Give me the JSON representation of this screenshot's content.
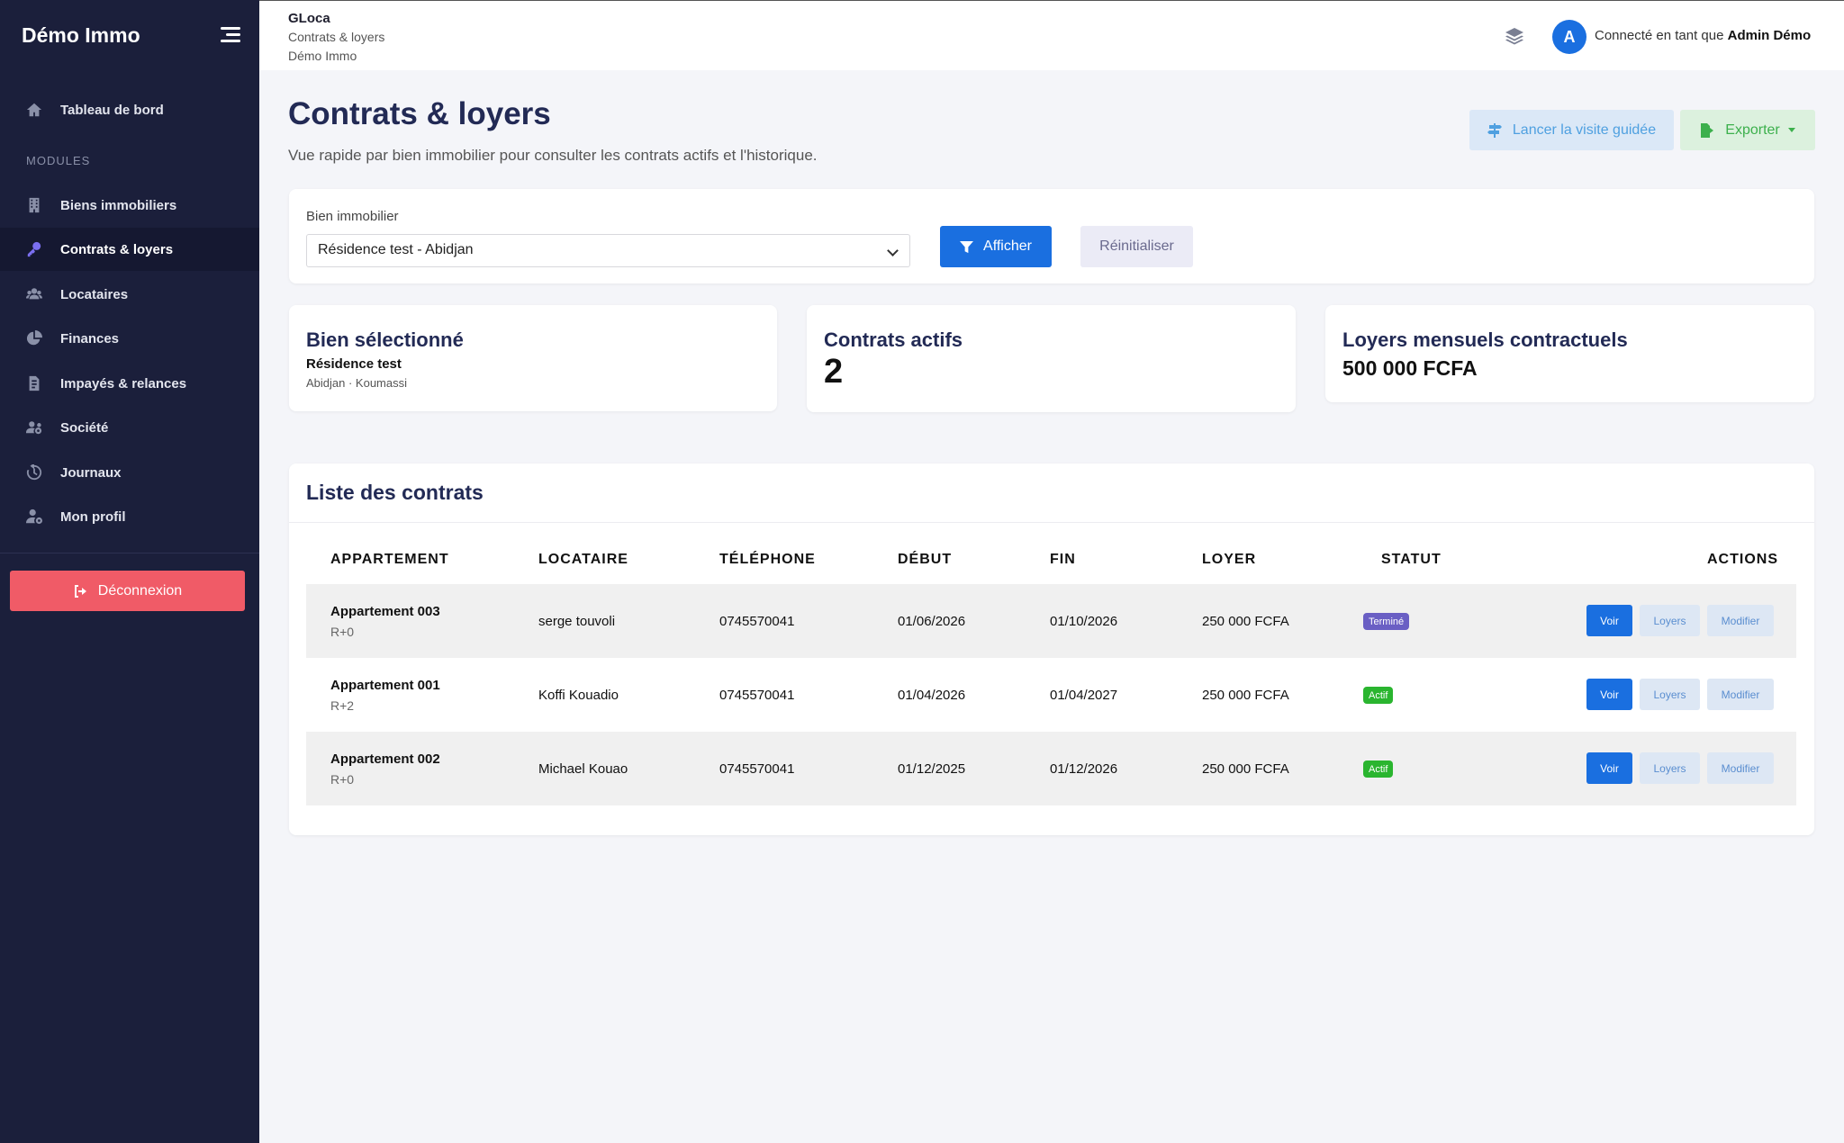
{
  "sidebar": {
    "brand": "Démo Immo",
    "dashboard": "Tableau de bord",
    "modules_title": "MODULES",
    "items": [
      {
        "label": "Biens immobiliers",
        "icon": "building-icon"
      },
      {
        "label": "Contrats & loyers",
        "icon": "key-icon",
        "active": true
      },
      {
        "label": "Locataires",
        "icon": "users-icon"
      },
      {
        "label": "Finances",
        "icon": "pie-chart-icon"
      },
      {
        "label": "Impayés & relances",
        "icon": "invoice-icon"
      },
      {
        "label": "Société",
        "icon": "users-cog-icon"
      },
      {
        "label": "Journaux",
        "icon": "history-icon"
      },
      {
        "label": "Mon profil",
        "icon": "user-cog-icon"
      }
    ],
    "logout": "Déconnexion"
  },
  "header": {
    "app_name": "GLoca",
    "breadcrumb_page": "Contrats & loyers",
    "breadcrumb_company": "Démo Immo",
    "avatar_letter": "A",
    "connected_prefix": "Connecté en tant que",
    "user_name": "Admin Démo"
  },
  "page": {
    "title": "Contrats & loyers",
    "subtitle": "Vue rapide par bien immobilier pour consulter les contrats actifs et l'historique.",
    "tour_button": "Lancer la visite guidée",
    "export_button": "Exporter"
  },
  "filter": {
    "label": "Bien immobilier",
    "selected": "Résidence test - Abidjan",
    "show_button": "Afficher",
    "reset_button": "Réinitialiser"
  },
  "stats": {
    "selected_title": "Bien sélectionné",
    "selected_name": "Résidence test",
    "selected_location": "Abidjan · Koumassi",
    "active_title": "Contrats actifs",
    "active_count": "2",
    "rent_title": "Loyers mensuels contractuels",
    "rent_value": "500 000 FCFA"
  },
  "list": {
    "title": "Liste des contrats",
    "headers": [
      "APPARTEMENT",
      "LOCATAIRE",
      "TÉLÉPHONE",
      "DÉBUT",
      "FIN",
      "LOYER",
      "STATUT",
      "ACTIONS"
    ],
    "rows": [
      {
        "apartment": "Appartement 003",
        "floor": "R+0",
        "tenant": "serge touvoli",
        "phone": "0745570041",
        "start": "01/06/2026",
        "end": "01/10/2026",
        "rent": "250 000 FCFA",
        "status": "Terminé",
        "status_color": "#6a5fc4"
      },
      {
        "apartment": "Appartement 001",
        "floor": "R+2",
        "tenant": "Koffi Kouadio",
        "phone": "0745570041",
        "start": "01/04/2026",
        "end": "01/04/2027",
        "rent": "250 000 FCFA",
        "status": "Actif",
        "status_color": "#2ab52f"
      },
      {
        "apartment": "Appartement 002",
        "floor": "R+0",
        "tenant": "Michael Kouao",
        "phone": "0745570041",
        "start": "01/12/2025",
        "end": "01/12/2026",
        "rent": "250 000 FCFA",
        "status": "Actif",
        "status_color": "#2ab52f"
      }
    ],
    "actions": {
      "view": "Voir",
      "rents": "Loyers",
      "edit": "Modifier"
    }
  },
  "colors": {
    "sidebar_bg": "#1b1f3b",
    "primary": "#1a6fe0",
    "danger": "#f05b67",
    "title": "#222a55"
  }
}
